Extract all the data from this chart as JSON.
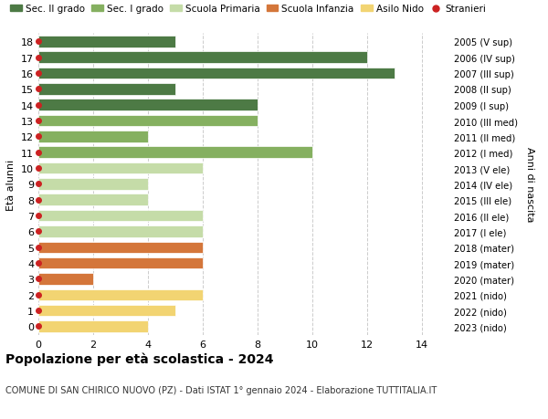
{
  "ages": [
    18,
    17,
    16,
    15,
    14,
    13,
    12,
    11,
    10,
    9,
    8,
    7,
    6,
    5,
    4,
    3,
    2,
    1,
    0
  ],
  "right_labels": [
    "2005 (V sup)",
    "2006 (IV sup)",
    "2007 (III sup)",
    "2008 (II sup)",
    "2009 (I sup)",
    "2010 (III med)",
    "2011 (II med)",
    "2012 (I med)",
    "2013 (V ele)",
    "2014 (IV ele)",
    "2015 (III ele)",
    "2016 (II ele)",
    "2017 (I ele)",
    "2018 (mater)",
    "2019 (mater)",
    "2020 (mater)",
    "2021 (nido)",
    "2022 (nido)",
    "2023 (nido)"
  ],
  "values": [
    5,
    12,
    13,
    5,
    8,
    8,
    4,
    10,
    6,
    4,
    4,
    6,
    6,
    6,
    6,
    2,
    6,
    5,
    4
  ],
  "bar_colors": [
    "#4d7a45",
    "#4d7a45",
    "#4d7a45",
    "#4d7a45",
    "#4d7a45",
    "#85b060",
    "#85b060",
    "#85b060",
    "#c5dca8",
    "#c5dca8",
    "#c5dca8",
    "#c5dca8",
    "#c5dca8",
    "#d4763a",
    "#d4763a",
    "#d4763a",
    "#f2d472",
    "#f2d472",
    "#f2d472"
  ],
  "stranieri_color": "#cc2222",
  "legend_entries": [
    {
      "label": "Sec. II grado",
      "color": "#4d7a45",
      "type": "patch"
    },
    {
      "label": "Sec. I grado",
      "color": "#85b060",
      "type": "patch"
    },
    {
      "label": "Scuola Primaria",
      "color": "#c5dca8",
      "type": "patch"
    },
    {
      "label": "Scuola Infanzia",
      "color": "#d4763a",
      "type": "patch"
    },
    {
      "label": "Asilo Nido",
      "color": "#f2d472",
      "type": "patch"
    },
    {
      "label": "Stranieri",
      "color": "#cc2222",
      "type": "dot"
    }
  ],
  "ylabel_left": "Età alunni",
  "ylabel_right": "Anni di nascita",
  "title": "Popolazione per età scolastica - 2024",
  "subtitle": "COMUNE DI SAN CHIRICO NUOVO (PZ) - Dati ISTAT 1° gennaio 2024 - Elaborazione TUTTITALIA.IT",
  "xlim": [
    0,
    15
  ],
  "xticks": [
    0,
    2,
    4,
    6,
    8,
    10,
    12,
    14
  ],
  "ylim_min": -0.55,
  "ylim_max": 18.55,
  "background_color": "#ffffff",
  "grid_color": "#cccccc",
  "bar_height": 0.72
}
